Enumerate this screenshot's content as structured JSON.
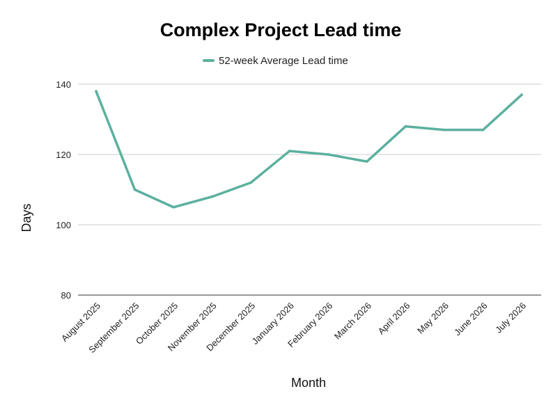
{
  "chart_data": {
    "type": "line",
    "title": "Complex Project Lead time",
    "xlabel": "Month",
    "ylabel": "Days",
    "categories": [
      "August 2025",
      "September 2025",
      "October 2025",
      "November 2025",
      "December 2025",
      "January 2026",
      "February 2026",
      "March 2026",
      "April 2026",
      "May 2026",
      "June 2026",
      "July 2026"
    ],
    "series": [
      {
        "name": "52-week Average Lead time",
        "color": "#5bb09e",
        "values": [
          138,
          110,
          105,
          108,
          112,
          121,
          120,
          118,
          128,
          127,
          127,
          137
        ]
      }
    ],
    "ylim": [
      80,
      140
    ],
    "yticks": [
      80,
      100,
      120,
      140
    ],
    "grid": true,
    "legend_position": "top-center"
  }
}
